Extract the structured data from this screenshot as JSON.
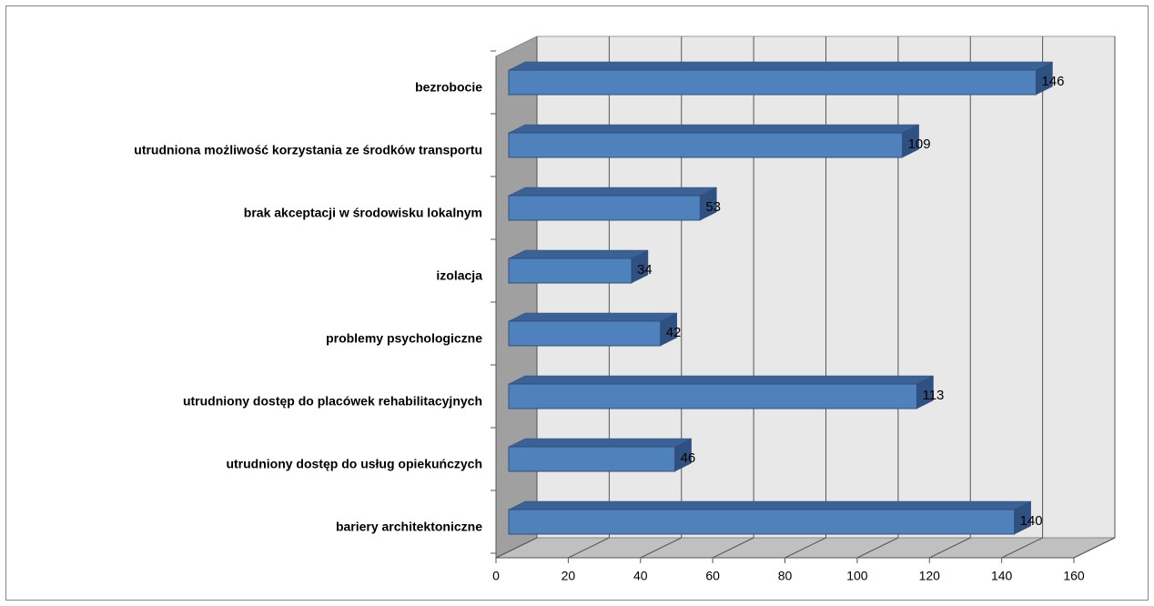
{
  "chart_data": {
    "type": "bar3d_horizontal",
    "categories": [
      "bezrobocie",
      "utrudniona możliwość korzystania ze środków transportu",
      "brak akceptacji w środowisku lokalnym",
      "izolacja",
      "problemy psychologiczne",
      "utrudniony dostęp do placówek rehabilitacyjnych",
      "utrudniony dostęp do usług opiekuńczych",
      "bariery architektoniczne"
    ],
    "values": [
      146,
      109,
      53,
      34,
      42,
      113,
      46,
      140
    ],
    "color": "#4f81bd",
    "xlim": [
      0,
      160
    ],
    "xticks": [
      0,
      20,
      40,
      60,
      80,
      100,
      120,
      140,
      160
    ],
    "grid": true
  }
}
